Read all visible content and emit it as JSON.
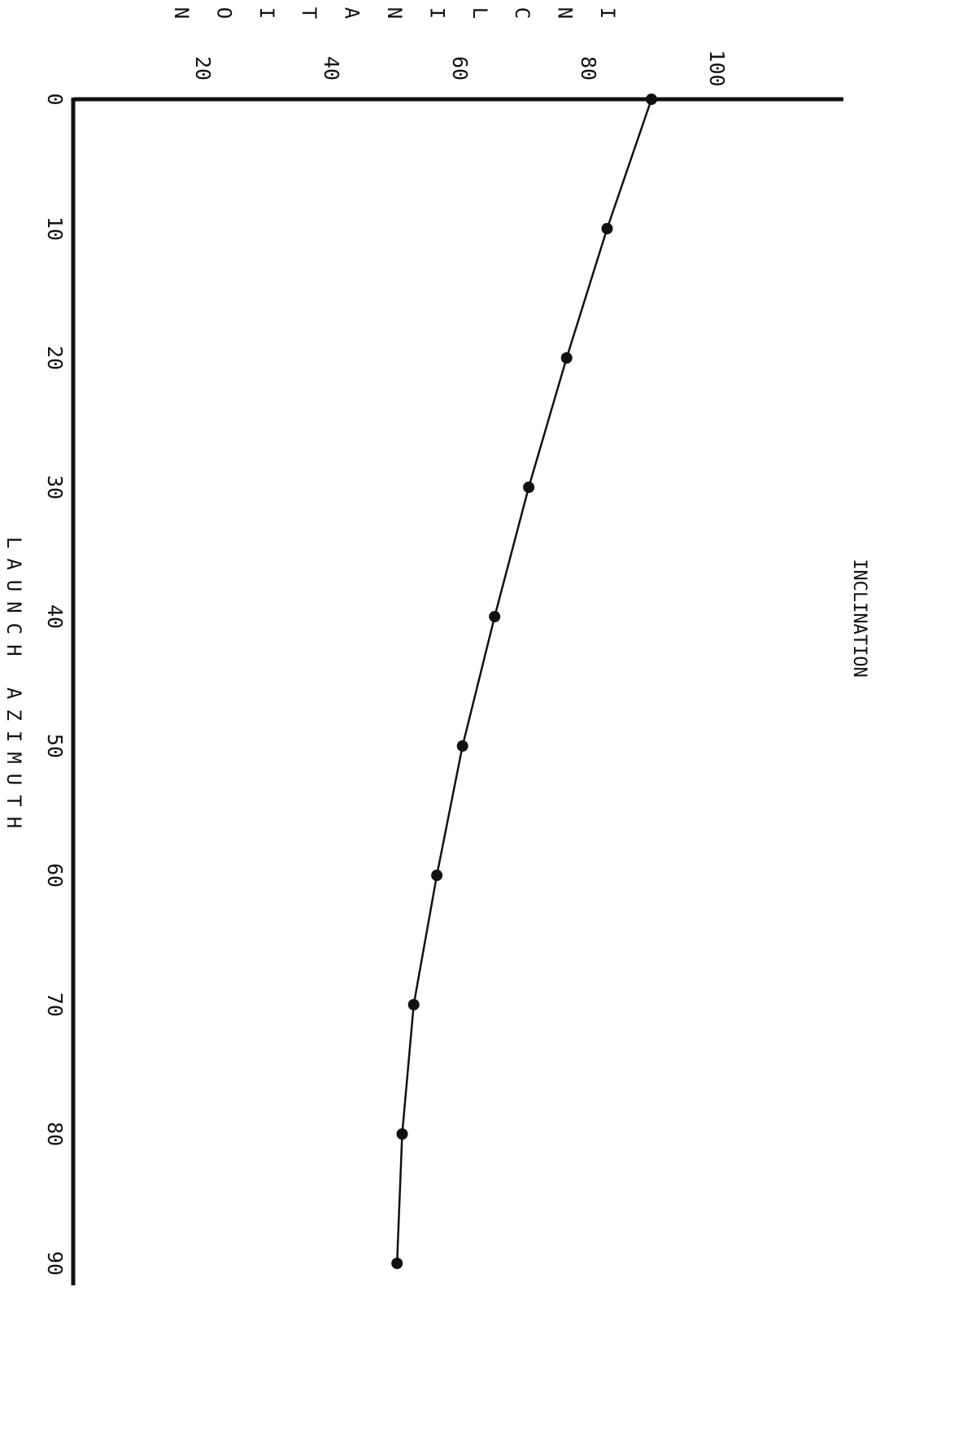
{
  "header_text": "INCLINATION",
  "chart_data": {
    "type": "line",
    "xlabel": "LAUNCH AZIMUTH",
    "ylabel": "INCLINATION",
    "xlim": [
      0,
      90
    ],
    "ylim": [
      0,
      110
    ],
    "x_ticks": [
      "0",
      "10",
      "20",
      "30",
      "40",
      "50",
      "60",
      "70",
      "80",
      "90"
    ],
    "y_ticks": [
      "20",
      "40",
      "60",
      "80",
      "100"
    ],
    "series": [
      {
        "x": [
          0,
          10,
          20,
          30,
          40,
          50,
          60,
          70,
          80,
          90
        ],
        "y": [
          90.0,
          83.1,
          76.8,
          70.9,
          65.6,
          60.6,
          56.6,
          53.0,
          51.2,
          50.4
        ]
      }
    ],
    "grid": false,
    "orientation": "rotated-90"
  },
  "colors": {
    "ink": "#111111",
    "background": "#ffffff"
  }
}
